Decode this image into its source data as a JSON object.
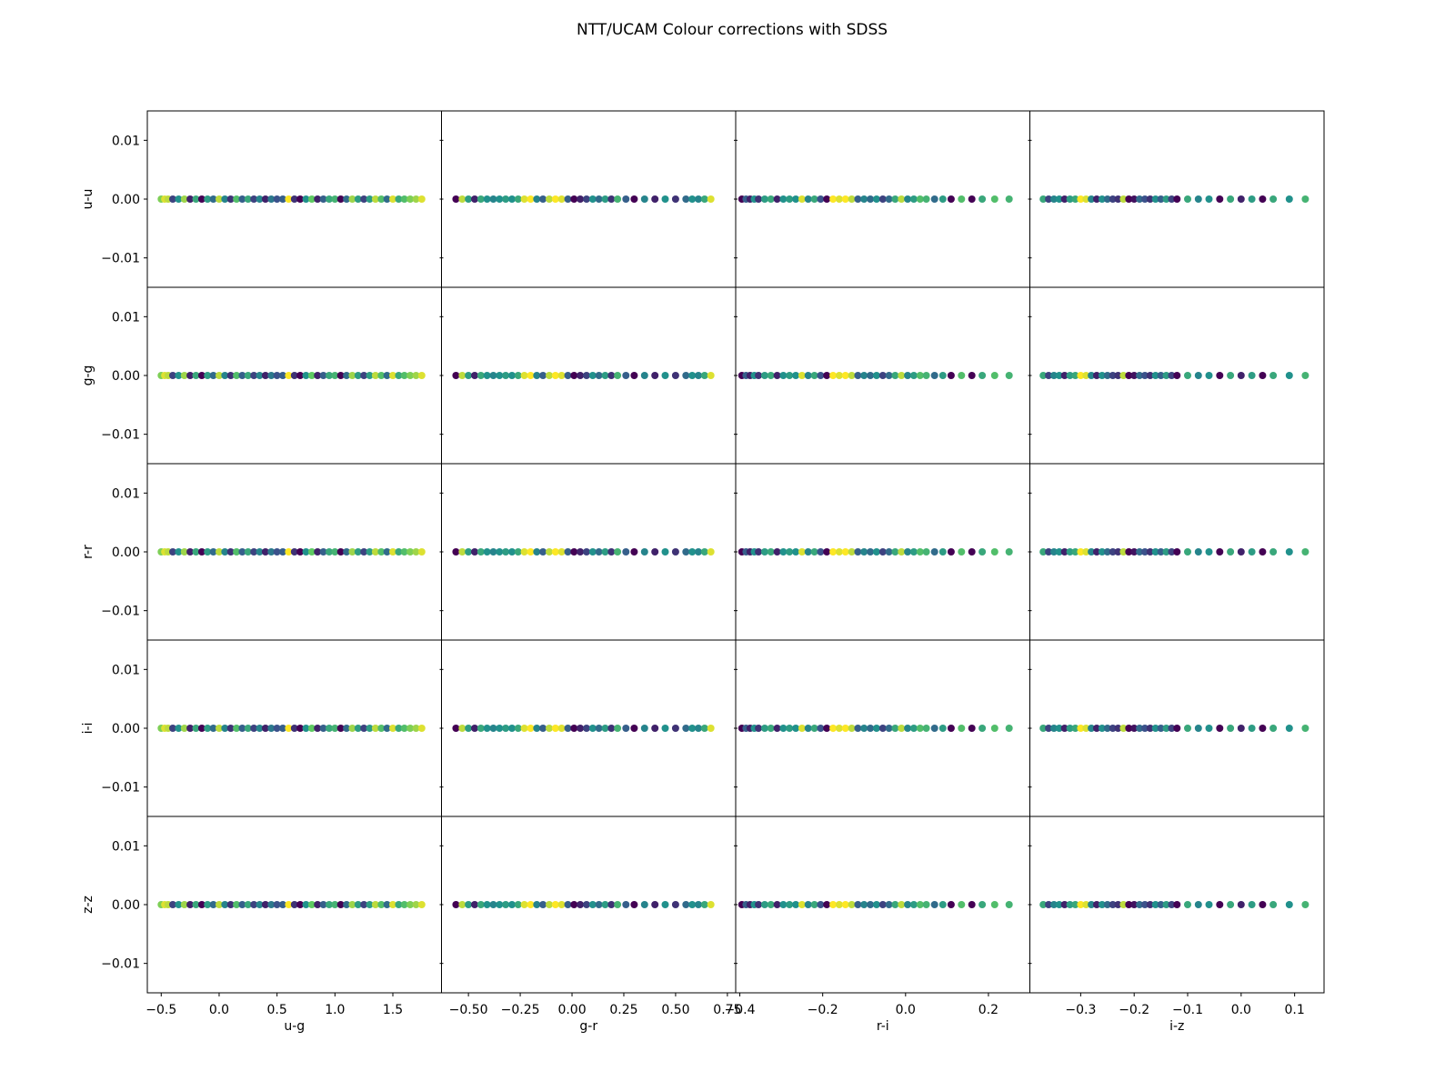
{
  "chart_data": {
    "type": "scatter",
    "title": "NTT/UCAM Colour corrections with SDSS",
    "layout": "5x4 grid of subplots, shared axes",
    "rows": [
      {
        "ylabel": "u-u"
      },
      {
        "ylabel": "g-g"
      },
      {
        "ylabel": "r-r"
      },
      {
        "ylabel": "i-i"
      },
      {
        "ylabel": "z-z"
      }
    ],
    "y_ticks": [
      {
        "value": 0.01,
        "label": "0.01"
      },
      {
        "value": 0.0,
        "label": "0.00"
      },
      {
        "value": -0.01,
        "label": "−0.01"
      }
    ],
    "ylim": [
      -0.015,
      0.015
    ],
    "columns": [
      {
        "xlabel": "u-g",
        "xlim": [
          -0.62,
          1.92
        ],
        "ticks": [
          {
            "value": -0.5,
            "label": "−0.5"
          },
          {
            "value": 0.0,
            "label": "0.0"
          },
          {
            "value": 0.5,
            "label": "0.5"
          },
          {
            "value": 1.0,
            "label": "1.0"
          },
          {
            "value": 1.5,
            "label": "1.5"
          }
        ],
        "x": [
          -0.5,
          -0.47,
          -0.44,
          -0.4,
          -0.35,
          -0.3,
          -0.25,
          -0.2,
          -0.15,
          -0.1,
          -0.05,
          0.0,
          0.05,
          0.1,
          0.15,
          0.2,
          0.25,
          0.3,
          0.35,
          0.4,
          0.45,
          0.5,
          0.55,
          0.6,
          0.65,
          0.7,
          0.75,
          0.8,
          0.85,
          0.9,
          0.95,
          1.0,
          1.05,
          1.1,
          1.15,
          1.2,
          1.25,
          1.3,
          1.35,
          1.4,
          1.45,
          1.5,
          1.55,
          1.6,
          1.65,
          1.7,
          1.75
        ],
        "c": [
          0.8,
          0.95,
          0.9,
          0.2,
          0.5,
          0.85,
          0.1,
          0.6,
          0.0,
          0.55,
          0.35,
          0.9,
          0.45,
          0.15,
          0.7,
          0.3,
          0.6,
          0.2,
          0.45,
          0.1,
          0.4,
          0.25,
          0.3,
          1.0,
          0.15,
          0.0,
          0.5,
          0.75,
          0.1,
          0.3,
          0.6,
          0.65,
          0.0,
          0.35,
          0.85,
          0.55,
          0.2,
          0.55,
          0.9,
          0.7,
          0.35,
          0.95,
          0.6,
          0.7,
          0.8,
          0.85,
          0.95
        ]
      },
      {
        "xlabel": "g-r",
        "xlim": [
          -0.63,
          0.79
        ],
        "ticks": [
          {
            "value": -0.5,
            "label": "−0.50"
          },
          {
            "value": -0.25,
            "label": "−0.25"
          },
          {
            "value": 0.0,
            "label": "0.00"
          },
          {
            "value": 0.25,
            "label": "0.25"
          },
          {
            "value": 0.5,
            "label": "0.50"
          },
          {
            "value": 0.75,
            "label": "0.75"
          }
        ],
        "x": [
          -0.56,
          -0.53,
          -0.5,
          -0.47,
          -0.44,
          -0.41,
          -0.38,
          -0.35,
          -0.32,
          -0.29,
          -0.26,
          -0.23,
          -0.2,
          -0.17,
          -0.14,
          -0.11,
          -0.08,
          -0.05,
          -0.02,
          0.01,
          0.04,
          0.07,
          0.1,
          0.13,
          0.16,
          0.19,
          0.22,
          0.26,
          0.3,
          0.35,
          0.4,
          0.45,
          0.5,
          0.55,
          0.58,
          0.61,
          0.64,
          0.67
        ],
        "c": [
          0.0,
          0.9,
          0.55,
          0.1,
          0.6,
          0.5,
          0.45,
          0.5,
          0.55,
          0.5,
          0.6,
          0.95,
          1.0,
          0.45,
          0.3,
          0.9,
          1.0,
          0.95,
          0.3,
          0.0,
          0.1,
          0.2,
          0.5,
          0.35,
          0.55,
          0.15,
          0.65,
          0.3,
          0.0,
          0.45,
          0.1,
          0.5,
          0.15,
          0.35,
          0.5,
          0.45,
          0.6,
          0.95
        ]
      },
      {
        "xlabel": "r-i",
        "xlim": [
          -0.41,
          0.3
        ],
        "ticks": [
          {
            "value": -0.4,
            "label": "−0.4"
          },
          {
            "value": -0.2,
            "label": "−0.2"
          },
          {
            "value": 0.0,
            "label": "0.0"
          },
          {
            "value": 0.2,
            "label": "0.2"
          }
        ],
        "x": [
          -0.395,
          -0.385,
          -0.375,
          -0.365,
          -0.355,
          -0.34,
          -0.325,
          -0.31,
          -0.295,
          -0.28,
          -0.265,
          -0.25,
          -0.235,
          -0.22,
          -0.205,
          -0.19,
          -0.175,
          -0.16,
          -0.145,
          -0.13,
          -0.115,
          -0.1,
          -0.085,
          -0.07,
          -0.055,
          -0.04,
          -0.025,
          -0.01,
          0.005,
          0.02,
          0.035,
          0.05,
          0.07,
          0.09,
          0.11,
          0.135,
          0.16,
          0.185,
          0.215,
          0.25
        ],
        "c": [
          0.0,
          0.3,
          0.1,
          0.5,
          0.15,
          0.55,
          0.6,
          0.1,
          0.5,
          0.55,
          0.5,
          0.95,
          0.45,
          0.6,
          0.25,
          0.0,
          1.0,
          0.95,
          1.0,
          0.9,
          0.3,
          0.45,
          0.35,
          0.5,
          0.2,
          0.35,
          0.6,
          0.9,
          0.45,
          0.55,
          0.7,
          0.65,
          0.35,
          0.55,
          0.0,
          0.7,
          0.0,
          0.6,
          0.7,
          0.65
        ]
      },
      {
        "xlabel": "i-z",
        "xlim": [
          -0.395,
          0.155
        ],
        "ticks": [
          {
            "value": -0.3,
            "label": "−0.3"
          },
          {
            "value": -0.2,
            "label": "−0.2"
          },
          {
            "value": -0.1,
            "label": "−0.1"
          },
          {
            "value": 0.0,
            "label": "0.0"
          },
          {
            "value": 0.1,
            "label": "0.1"
          }
        ],
        "x": [
          -0.37,
          -0.36,
          -0.35,
          -0.34,
          -0.33,
          -0.32,
          -0.31,
          -0.3,
          -0.29,
          -0.28,
          -0.27,
          -0.26,
          -0.25,
          -0.24,
          -0.23,
          -0.22,
          -0.21,
          -0.2,
          -0.19,
          -0.18,
          -0.17,
          -0.16,
          -0.15,
          -0.14,
          -0.13,
          -0.12,
          -0.1,
          -0.08,
          -0.06,
          -0.04,
          -0.02,
          0.0,
          0.02,
          0.04,
          0.06,
          0.09,
          0.12
        ],
        "c": [
          0.6,
          0.2,
          0.45,
          0.5,
          0.1,
          0.55,
          0.6,
          1.0,
          0.95,
          0.45,
          0.1,
          0.5,
          0.35,
          0.2,
          0.15,
          0.9,
          0.0,
          0.05,
          0.35,
          0.25,
          0.15,
          0.5,
          0.3,
          0.55,
          0.2,
          0.0,
          0.6,
          0.45,
          0.5,
          0.0,
          0.6,
          0.1,
          0.55,
          0.0,
          0.6,
          0.5,
          0.65
        ]
      }
    ]
  }
}
